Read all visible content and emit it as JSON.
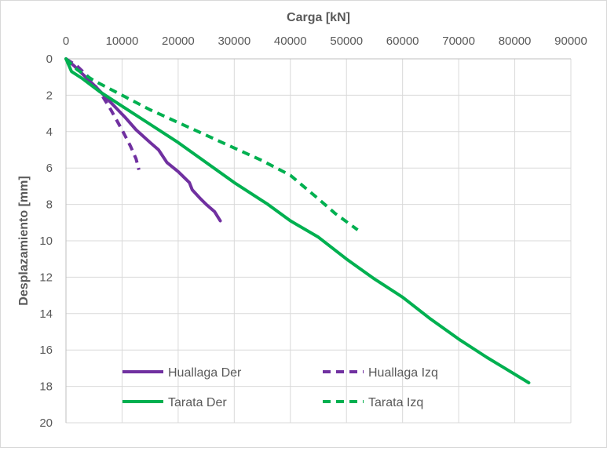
{
  "chart_data": {
    "type": "line",
    "title": "",
    "xlabel": "Carga [kN]",
    "ylabel": "Desplazamiento [mm]",
    "xlim": [
      0,
      90000
    ],
    "ylim": [
      0,
      20
    ],
    "x_axis_position": "top",
    "y_axis_inverted": true,
    "x_ticks": [
      "0",
      "10000",
      "20000",
      "30000",
      "40000",
      "50000",
      "60000",
      "70000",
      "80000",
      "90000"
    ],
    "y_ticks": [
      "0",
      "2",
      "4",
      "6",
      "8",
      "10",
      "12",
      "14",
      "16",
      "18",
      "20"
    ],
    "x_tick_values": [
      0,
      10000,
      20000,
      30000,
      40000,
      50000,
      60000,
      70000,
      80000,
      90000
    ],
    "y_tick_values": [
      0,
      2,
      4,
      6,
      8,
      10,
      12,
      14,
      16,
      18,
      20
    ],
    "grid": true,
    "legend_position": "bottom-inside",
    "series": [
      {
        "name": "Huallaga Der",
        "color": "#7030a0",
        "style": "solid",
        "points": [
          [
            0,
            0
          ],
          [
            1500,
            0.4
          ],
          [
            3500,
            1.0
          ],
          [
            5500,
            1.6
          ],
          [
            8000,
            2.4
          ],
          [
            10500,
            3.2
          ],
          [
            12500,
            3.9
          ],
          [
            15000,
            4.6
          ],
          [
            16500,
            5.0
          ],
          [
            18000,
            5.7
          ],
          [
            20000,
            6.2
          ],
          [
            22000,
            6.8
          ],
          [
            22500,
            7.2
          ],
          [
            24000,
            7.7
          ],
          [
            25000,
            8.0
          ],
          [
            26500,
            8.4
          ],
          [
            27500,
            8.9
          ]
        ]
      },
      {
        "name": "Huallaga Izq",
        "color": "#7030a0",
        "style": "dashed",
        "points": [
          [
            0,
            0
          ],
          [
            2000,
            0.4
          ],
          [
            4000,
            1.0
          ],
          [
            6000,
            1.8
          ],
          [
            8000,
            2.8
          ],
          [
            10000,
            3.9
          ],
          [
            11500,
            4.8
          ],
          [
            12500,
            5.5
          ],
          [
            13000,
            6.1
          ]
        ]
      },
      {
        "name": "Tarata Der",
        "color": "#00b050",
        "style": "solid",
        "points": [
          [
            0,
            0
          ],
          [
            1000,
            0.7
          ],
          [
            3000,
            1.1
          ],
          [
            6000,
            1.8
          ],
          [
            10000,
            2.6
          ],
          [
            15000,
            3.6
          ],
          [
            20000,
            4.6
          ],
          [
            25000,
            5.7
          ],
          [
            30000,
            6.8
          ],
          [
            36000,
            8.0
          ],
          [
            40000,
            8.9
          ],
          [
            45000,
            9.8
          ],
          [
            50000,
            11.0
          ],
          [
            55000,
            12.1
          ],
          [
            60000,
            13.1
          ],
          [
            65000,
            14.3
          ],
          [
            70000,
            15.4
          ],
          [
            75000,
            16.4
          ],
          [
            82500,
            17.8
          ]
        ]
      },
      {
        "name": "Tarata Izq",
        "color": "#00b050",
        "style": "dashed",
        "points": [
          [
            0,
            0
          ],
          [
            2000,
            0.6
          ],
          [
            5000,
            1.2
          ],
          [
            10000,
            2.0
          ],
          [
            15000,
            2.8
          ],
          [
            20000,
            3.5
          ],
          [
            25000,
            4.2
          ],
          [
            30000,
            4.9
          ],
          [
            35000,
            5.6
          ],
          [
            40000,
            6.4
          ],
          [
            45000,
            7.7
          ],
          [
            48000,
            8.5
          ],
          [
            52000,
            9.4
          ]
        ]
      }
    ]
  }
}
